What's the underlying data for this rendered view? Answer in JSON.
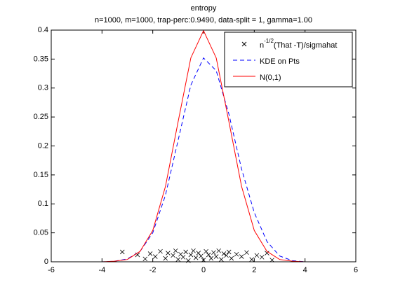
{
  "chart_data": {
    "type": "line",
    "title": "entropy",
    "subtitle": "n=1000, m=1000, trap-perc:0.9490, data-split = 1, gamma=1.00",
    "x": [
      -6,
      -5,
      -4,
      -3.5,
      -3,
      -2.5,
      -2,
      -1.5,
      -1,
      -0.5,
      0,
      0.5,
      1,
      1.5,
      2,
      2.5,
      3,
      3.5,
      4,
      5,
      6
    ],
    "series": [
      {
        "name": [
          "n",
          "-1/2",
          "(That -T)/sigmahat"
        ],
        "color": "#000000",
        "marker": "x",
        "x": [
          -3.2,
          -2.6,
          -2.3,
          -2.1,
          -1.9,
          -1.7,
          -1.5,
          -1.4,
          -1.2,
          -1.1,
          -1.0,
          -0.9,
          -0.8,
          -0.7,
          -0.6,
          -0.5,
          -0.4,
          -0.3,
          -0.2,
          -0.1,
          0.0,
          0.1,
          0.2,
          0.3,
          0.4,
          0.5,
          0.6,
          0.7,
          0.8,
          0.9,
          1.0,
          1.1,
          1.3,
          1.5,
          1.7,
          1.9,
          2.1,
          2.3,
          2.5,
          2.7
        ],
        "values": [
          0.017,
          0.012,
          0.005,
          0.014,
          0.009,
          0.018,
          0.006,
          0.015,
          0.011,
          0.019,
          0.004,
          0.013,
          0.008,
          0.017,
          0.002,
          0.012,
          0.019,
          0.007,
          0.015,
          0.01,
          0.003,
          0.018,
          0.012,
          0.006,
          0.016,
          0.009,
          0.019,
          0.004,
          0.014,
          0.011,
          0.017,
          0.006,
          0.013,
          0.009,
          0.016,
          0.004,
          0.011,
          0.008,
          0.015,
          0.003
        ]
      },
      {
        "name": "KDE on Pts",
        "color": "#0000ff",
        "dash": true,
        "values": [
          0,
          0,
          0,
          0.001,
          0.005,
          0.018,
          0.05,
          0.115,
          0.21,
          0.305,
          0.352,
          0.33,
          0.255,
          0.16,
          0.085,
          0.035,
          0.01,
          0.002,
          0,
          0,
          0
        ]
      },
      {
        "name": "N(0,1)",
        "color": "#ff0000",
        "values": [
          0,
          0,
          0,
          0.001,
          0.004,
          0.018,
          0.054,
          0.13,
          0.242,
          0.352,
          0.399,
          0.352,
          0.242,
          0.13,
          0.054,
          0.018,
          0.004,
          0.001,
          0,
          0,
          0
        ]
      }
    ],
    "xlim": [
      -6,
      6
    ],
    "xticks": [
      -6,
      -4,
      -2,
      0,
      2,
      4,
      6
    ],
    "ylim": [
      0,
      0.4
    ],
    "yticks": [
      0,
      0.05,
      0.1,
      0.15,
      0.2,
      0.25,
      0.3,
      0.35,
      0.4
    ],
    "legend": "top-right"
  }
}
